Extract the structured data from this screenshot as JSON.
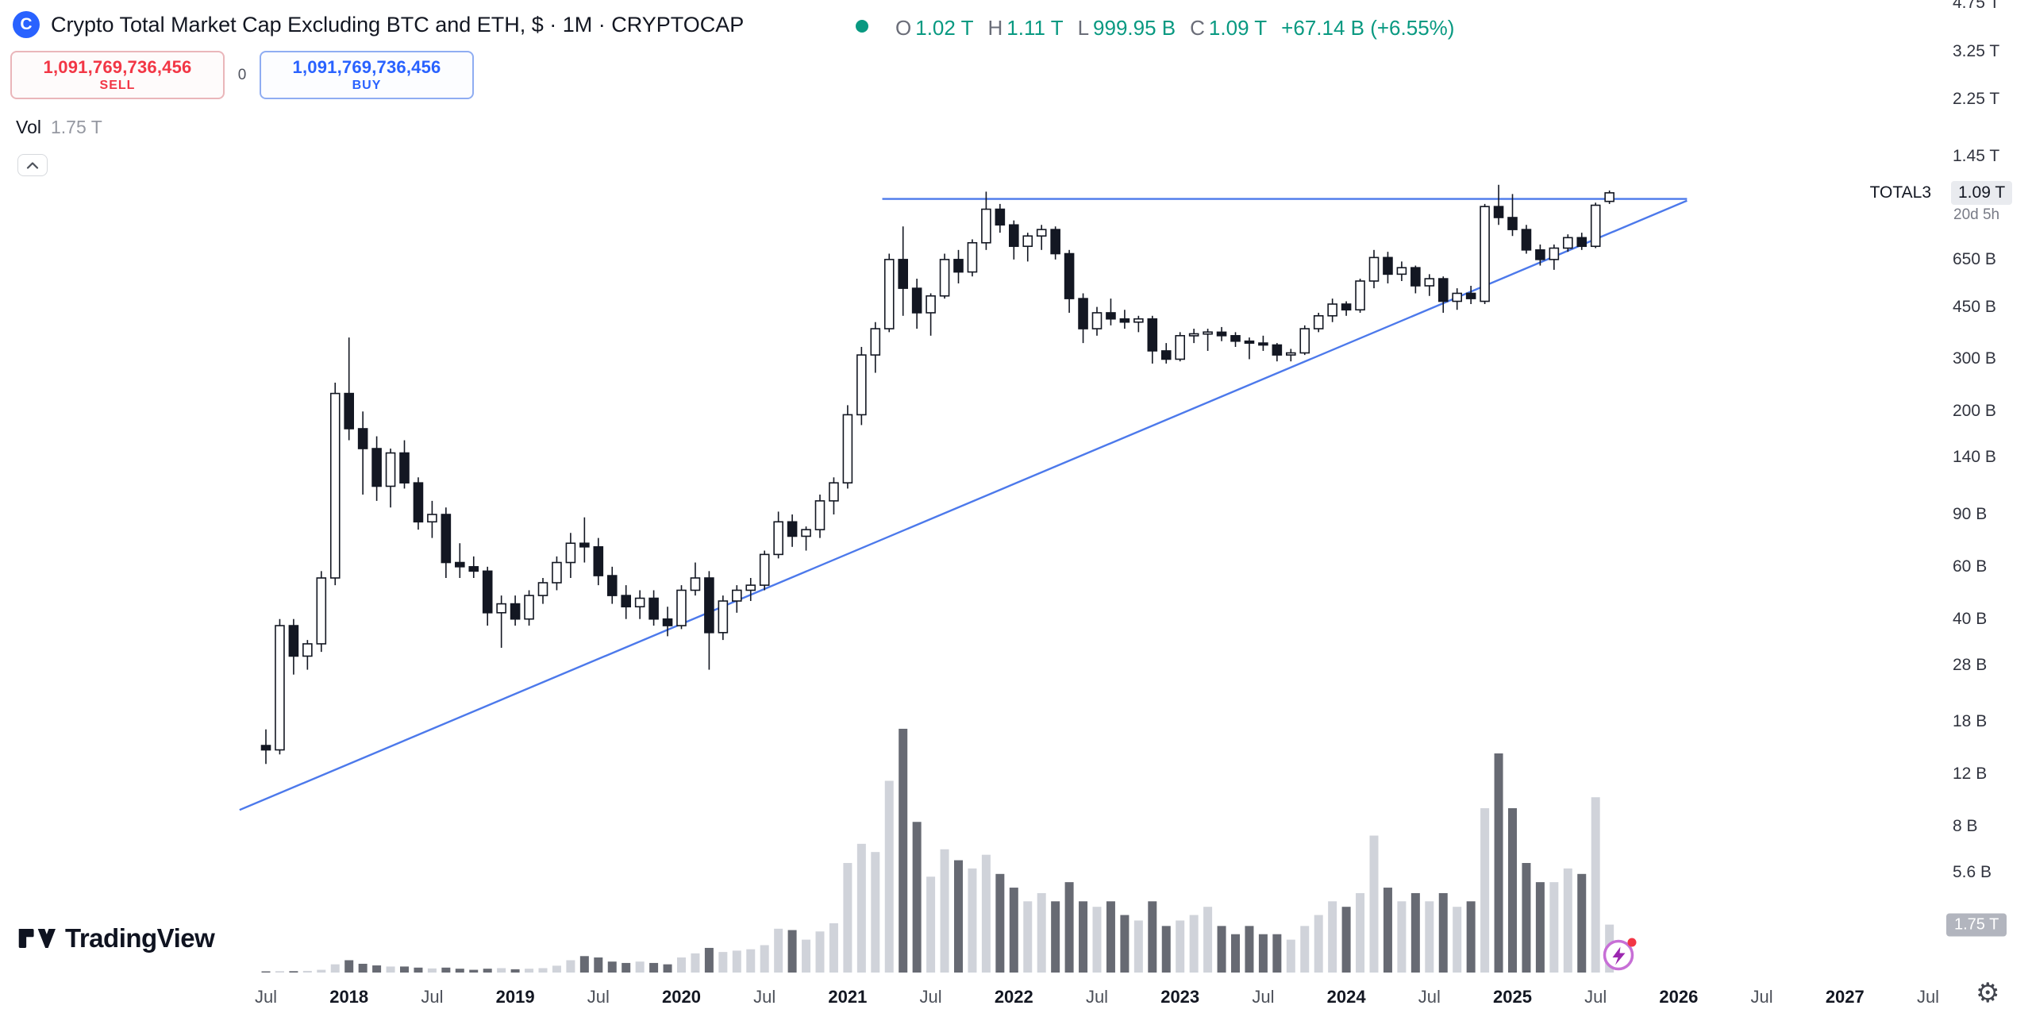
{
  "header": {
    "symbol_title": "Crypto Total Market Cap Excluding BTC and ETH, $ · 1M · CRYPTOCAP",
    "symbol_icon_letter": "C",
    "market_status": "open",
    "ohlc": {
      "o_label": "O",
      "o": "1.02 T",
      "h_label": "H",
      "h": "1.11 T",
      "l_label": "L",
      "l": "999.95 B",
      "c_label": "C",
      "c": "1.09 T",
      "change": "+67.14 B (+6.55%)"
    }
  },
  "trade_panel": {
    "sell_price": "1,091,769,736,456",
    "sell_label": "SELL",
    "spread": "0",
    "buy_price": "1,091,769,736,456",
    "buy_label": "BUY"
  },
  "volume_legend": {
    "label": "Vol",
    "value": "1.75 T"
  },
  "price_label": {
    "symbol": "TOTAL3",
    "price": "1.09 T",
    "countdown": "20d 5h"
  },
  "volume_axis_label": "1.75 T",
  "footer": {
    "brand": "TradingView"
  },
  "icons": {
    "collapse": "chevron-up-icon",
    "settings": "gear-icon",
    "boost": "lightning-icon",
    "settings_glyph": "⚙"
  },
  "colors": {
    "accent_blue": "#2962ff",
    "up_green": "#089981",
    "sell_red": "#f23645",
    "candle": "#131722",
    "candle_up_fill": "#ffffff",
    "vol_up": "#d0d3da",
    "vol_down": "#676a73",
    "trendline": "#2d62e8",
    "background": "#ffffff"
  },
  "chart_data": {
    "type": "candlestick",
    "title": "Crypto Total Market Cap Excluding BTC and ETH",
    "symbol": "CRYPTOCAP:TOTAL3",
    "interval": "1M",
    "scale": "log",
    "grid": false,
    "legend_position": "top-left",
    "price_axis_side": "right",
    "price_unit": "USD billions",
    "volume_unit": "USD trillions",
    "current": {
      "open": 1020,
      "high": 1110,
      "low": 999.95,
      "close": 1090,
      "change_abs_B": 67.14,
      "change_pct": 6.55,
      "volume_T": 1.75
    },
    "price_axis_ticks": [
      {
        "label": "4.75 T",
        "v": 4750
      },
      {
        "label": "3.25 T",
        "v": 3250
      },
      {
        "label": "2.25 T",
        "v": 2250
      },
      {
        "label": "1.45 T",
        "v": 1450
      },
      {
        "label": "650 B",
        "v": 650
      },
      {
        "label": "450 B",
        "v": 450
      },
      {
        "label": "300 B",
        "v": 300
      },
      {
        "label": "200 B",
        "v": 200
      },
      {
        "label": "140 B",
        "v": 140
      },
      {
        "label": "90 B",
        "v": 90
      },
      {
        "label": "60 B",
        "v": 60
      },
      {
        "label": "40 B",
        "v": 40
      },
      {
        "label": "28 B",
        "v": 28
      },
      {
        "label": "18 B",
        "v": 18
      },
      {
        "label": "12 B",
        "v": 12
      },
      {
        "label": "8 B",
        "v": 8
      },
      {
        "label": "5.6 B",
        "v": 5.6
      }
    ],
    "time_axis_labels": [
      {
        "label": "Jul",
        "i": 0,
        "kind": "month"
      },
      {
        "label": "2018",
        "i": 6,
        "kind": "year"
      },
      {
        "label": "Jul",
        "i": 12,
        "kind": "month"
      },
      {
        "label": "2019",
        "i": 18,
        "kind": "year"
      },
      {
        "label": "Jul",
        "i": 24,
        "kind": "month"
      },
      {
        "label": "2020",
        "i": 30,
        "kind": "year"
      },
      {
        "label": "Jul",
        "i": 36,
        "kind": "month"
      },
      {
        "label": "2021",
        "i": 42,
        "kind": "year"
      },
      {
        "label": "Jul",
        "i": 48,
        "kind": "month"
      },
      {
        "label": "2022",
        "i": 54,
        "kind": "year"
      },
      {
        "label": "Jul",
        "i": 60,
        "kind": "month"
      },
      {
        "label": "2023",
        "i": 66,
        "kind": "year"
      },
      {
        "label": "Jul",
        "i": 72,
        "kind": "month"
      },
      {
        "label": "2024",
        "i": 78,
        "kind": "year"
      },
      {
        "label": "Jul",
        "i": 84,
        "kind": "month"
      },
      {
        "label": "2025",
        "i": 90,
        "kind": "year"
      },
      {
        "label": "Jul",
        "i": 96,
        "kind": "month"
      },
      {
        "label": "2026",
        "i": 102,
        "kind": "year"
      },
      {
        "label": "Jul",
        "i": 108,
        "kind": "month"
      },
      {
        "label": "2027",
        "i": 114,
        "kind": "year"
      },
      {
        "label": "Jul",
        "i": 120,
        "kind": "month"
      }
    ],
    "months_format": [
      "date",
      "open_B",
      "high_B",
      "low_B",
      "close_B",
      "volume_T"
    ],
    "months": [
      [
        "2017-07",
        15,
        17,
        13,
        14.5,
        0.02
      ],
      [
        "2017-08",
        14.5,
        40,
        14,
        38,
        0.05
      ],
      [
        "2017-09",
        38,
        40,
        26,
        30,
        0.05
      ],
      [
        "2017-10",
        30,
        34,
        27,
        33,
        0.06
      ],
      [
        "2017-11",
        33,
        58,
        31,
        55,
        0.1
      ],
      [
        "2017-12",
        55,
        250,
        52,
        230,
        0.3
      ],
      [
        "2018-01",
        230,
        355,
        160,
        175,
        0.45
      ],
      [
        "2018-02",
        175,
        200,
        105,
        150,
        0.32
      ],
      [
        "2018-03",
        150,
        165,
        100,
        112,
        0.26
      ],
      [
        "2018-04",
        112,
        150,
        95,
        145,
        0.22
      ],
      [
        "2018-05",
        145,
        160,
        110,
        115,
        0.22
      ],
      [
        "2018-06",
        115,
        120,
        80,
        85,
        0.18
      ],
      [
        "2018-07",
        85,
        100,
        75,
        90,
        0.15
      ],
      [
        "2018-08",
        90,
        95,
        55,
        62,
        0.18
      ],
      [
        "2018-09",
        62,
        72,
        55,
        60,
        0.14
      ],
      [
        "2018-10",
        60,
        65,
        55,
        58,
        0.1
      ],
      [
        "2018-11",
        58,
        60,
        38,
        42,
        0.14
      ],
      [
        "2018-12",
        42,
        48,
        32,
        45,
        0.16
      ],
      [
        "2019-01",
        45,
        48,
        38,
        40,
        0.12
      ],
      [
        "2019-02",
        40,
        50,
        38,
        48,
        0.14
      ],
      [
        "2019-03",
        48,
        55,
        45,
        53,
        0.16
      ],
      [
        "2019-04",
        53,
        65,
        50,
        62,
        0.25
      ],
      [
        "2019-05",
        62,
        78,
        55,
        72,
        0.45
      ],
      [
        "2019-06",
        72,
        88,
        62,
        70,
        0.6
      ],
      [
        "2019-07",
        70,
        75,
        52,
        56,
        0.55
      ],
      [
        "2019-08",
        56,
        60,
        45,
        48,
        0.4
      ],
      [
        "2019-09",
        48,
        52,
        40,
        44,
        0.35
      ],
      [
        "2019-10",
        44,
        50,
        40,
        47,
        0.4
      ],
      [
        "2019-11",
        47,
        50,
        38,
        40,
        0.35
      ],
      [
        "2019-12",
        40,
        44,
        35,
        38,
        0.3
      ],
      [
        "2020-01",
        38,
        52,
        37,
        50,
        0.55
      ],
      [
        "2020-02",
        50,
        62,
        48,
        55,
        0.7
      ],
      [
        "2020-03",
        55,
        58,
        27,
        36,
        0.9
      ],
      [
        "2020-04",
        36,
        48,
        34,
        46,
        0.75
      ],
      [
        "2020-05",
        46,
        52,
        42,
        50,
        0.8
      ],
      [
        "2020-06",
        50,
        55,
        46,
        52,
        0.85
      ],
      [
        "2020-07",
        52,
        68,
        50,
        66,
        1.0
      ],
      [
        "2020-08",
        66,
        92,
        64,
        85,
        1.6
      ],
      [
        "2020-09",
        85,
        90,
        70,
        76,
        1.55
      ],
      [
        "2020-10",
        76,
        82,
        68,
        80,
        1.2
      ],
      [
        "2020-11",
        80,
        105,
        75,
        100,
        1.5
      ],
      [
        "2020-12",
        100,
        120,
        90,
        115,
        1.8
      ],
      [
        "2021-01",
        115,
        210,
        110,
        195,
        4.0
      ],
      [
        "2021-02",
        195,
        330,
        180,
        310,
        4.7
      ],
      [
        "2021-03",
        310,
        400,
        270,
        380,
        4.4
      ],
      [
        "2021-04",
        380,
        680,
        370,
        650,
        7.0
      ],
      [
        "2021-05",
        650,
        840,
        420,
        520,
        8.9
      ],
      [
        "2021-06",
        520,
        560,
        380,
        430,
        5.5
      ],
      [
        "2021-07",
        430,
        500,
        360,
        490,
        3.5
      ],
      [
        "2021-08",
        490,
        680,
        480,
        650,
        4.5
      ],
      [
        "2021-09",
        650,
        700,
        540,
        590,
        4.1
      ],
      [
        "2021-10",
        590,
        760,
        570,
        740,
        3.8
      ],
      [
        "2021-11",
        740,
        1100,
        700,
        960,
        4.3
      ],
      [
        "2021-12",
        960,
        1000,
        800,
        850,
        3.6
      ],
      [
        "2022-01",
        850,
        880,
        650,
        720,
        3.1
      ],
      [
        "2022-02",
        720,
        800,
        640,
        780,
        2.6
      ],
      [
        "2022-03",
        780,
        850,
        700,
        820,
        2.9
      ],
      [
        "2022-04",
        820,
        840,
        650,
        680,
        2.6
      ],
      [
        "2022-05",
        680,
        700,
        430,
        480,
        3.3
      ],
      [
        "2022-06",
        480,
        500,
        340,
        380,
        2.6
      ],
      [
        "2022-07",
        380,
        450,
        360,
        430,
        2.4
      ],
      [
        "2022-08",
        430,
        480,
        390,
        410,
        2.6
      ],
      [
        "2022-09",
        410,
        440,
        380,
        400,
        2.1
      ],
      [
        "2022-10",
        400,
        420,
        370,
        410,
        1.9
      ],
      [
        "2022-11",
        410,
        420,
        290,
        320,
        2.6
      ],
      [
        "2022-12",
        320,
        340,
        290,
        300,
        1.7
      ],
      [
        "2023-01",
        300,
        370,
        295,
        360,
        1.9
      ],
      [
        "2023-02",
        360,
        380,
        340,
        365,
        2.1
      ],
      [
        "2023-03",
        365,
        380,
        320,
        370,
        2.4
      ],
      [
        "2023-04",
        370,
        385,
        345,
        360,
        1.7
      ],
      [
        "2023-05",
        360,
        370,
        330,
        345,
        1.4
      ],
      [
        "2023-06",
        345,
        355,
        300,
        340,
        1.7
      ],
      [
        "2023-07",
        340,
        360,
        320,
        335,
        1.4
      ],
      [
        "2023-08",
        335,
        340,
        295,
        310,
        1.4
      ],
      [
        "2023-09",
        310,
        325,
        295,
        315,
        1.2
      ],
      [
        "2023-10",
        315,
        390,
        310,
        380,
        1.7
      ],
      [
        "2023-11",
        380,
        430,
        370,
        420,
        2.1
      ],
      [
        "2023-12",
        420,
        480,
        400,
        460,
        2.6
      ],
      [
        "2024-01",
        460,
        470,
        420,
        440,
        2.4
      ],
      [
        "2024-02",
        440,
        560,
        430,
        550,
        2.9
      ],
      [
        "2024-03",
        550,
        700,
        520,
        660,
        5.0
      ],
      [
        "2024-04",
        660,
        690,
        540,
        580,
        3.1
      ],
      [
        "2024-05",
        580,
        640,
        550,
        610,
        2.6
      ],
      [
        "2024-06",
        610,
        620,
        500,
        530,
        2.9
      ],
      [
        "2024-07",
        530,
        580,
        490,
        560,
        2.6
      ],
      [
        "2024-08",
        560,
        570,
        430,
        470,
        2.9
      ],
      [
        "2024-09",
        470,
        520,
        440,
        500,
        2.4
      ],
      [
        "2024-10",
        500,
        530,
        460,
        480,
        2.6
      ],
      [
        "2024-11",
        470,
        1000,
        460,
        980,
        6.0
      ],
      [
        "2024-12",
        980,
        1160,
        850,
        900,
        8.0
      ],
      [
        "2025-01",
        900,
        1080,
        780,
        820,
        6.0
      ],
      [
        "2025-02",
        820,
        850,
        680,
        700,
        4.0
      ],
      [
        "2025-03",
        700,
        730,
        620,
        650,
        3.3
      ],
      [
        "2025-04",
        650,
        730,
        600,
        710,
        3.3
      ],
      [
        "2025-05",
        710,
        790,
        690,
        770,
        3.8
      ],
      [
        "2025-06",
        770,
        800,
        700,
        720,
        3.6
      ],
      [
        "2025-07",
        720,
        1010,
        710,
        990,
        6.4
      ],
      [
        "2025-08",
        1020,
        1110,
        999.95,
        1090,
        1.75
      ]
    ],
    "trendlines": [
      {
        "name": "ascending-support-trendline",
        "from_i": -1.9,
        "from_B": 9.1,
        "to_i": 102.6,
        "to_B": 1026
      },
      {
        "name": "horizontal-resistance-line",
        "from_i": 44.5,
        "from_B": 1040,
        "to_i": 102.6,
        "to_B": 1040
      }
    ]
  }
}
